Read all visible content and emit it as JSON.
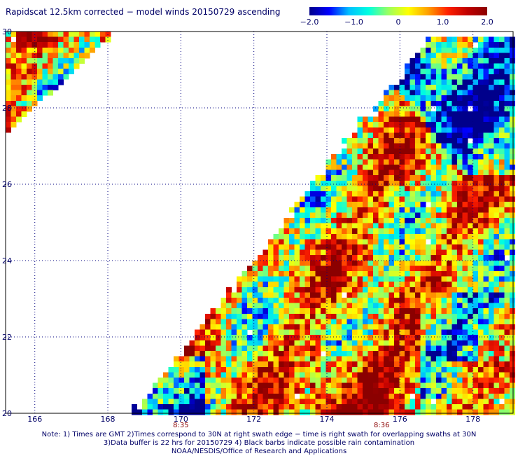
{
  "title": "Rapidscat 12.5km corrected − model winds 20150729 ascending",
  "colorbar": {
    "labels": [
      "−2.0",
      "−1.0",
      "0",
      "1.0",
      "2.0"
    ],
    "values": [
      -2.0,
      -1.0,
      0,
      1.0,
      2.0
    ],
    "range": [
      -2.0,
      2.0
    ],
    "colors": [
      "#00008b",
      "#0000ff",
      "#00c0ff",
      "#00ffe0",
      "#9aff60",
      "#ffff00",
      "#ffa000",
      "#ff2000",
      "#c00000",
      "#8b0000"
    ]
  },
  "map": {
    "lon_range": [
      165.2,
      179.1
    ],
    "lat_range": [
      20,
      30
    ],
    "lon_ticks": [
      "166",
      "168",
      "170",
      "172",
      "174",
      "176",
      "178"
    ],
    "lon_tick_values": [
      166,
      168,
      170,
      172,
      174,
      176,
      178
    ],
    "lat_ticks": [
      "20",
      "22",
      "24",
      "26",
      "28",
      "30"
    ],
    "lat_tick_values": [
      20,
      22,
      24,
      26,
      28,
      30
    ],
    "grid": true,
    "grid_color": "#000080",
    "swath_times": [
      {
        "label": "8:35",
        "lon": 170
      },
      {
        "label": "8:36",
        "lon": 175.5
      }
    ]
  },
  "notes": [
    "Note: 1) Times are GMT 2)Times correspond to 30N at right swath edge − time is right swath for overlapping swaths at 30N",
    "3)Data buffer is 22 hrs for 20150729 4) Black barbs indicate possible rain contamination",
    "NOAA/NESDIS/Office of Research and Applications"
  ]
}
